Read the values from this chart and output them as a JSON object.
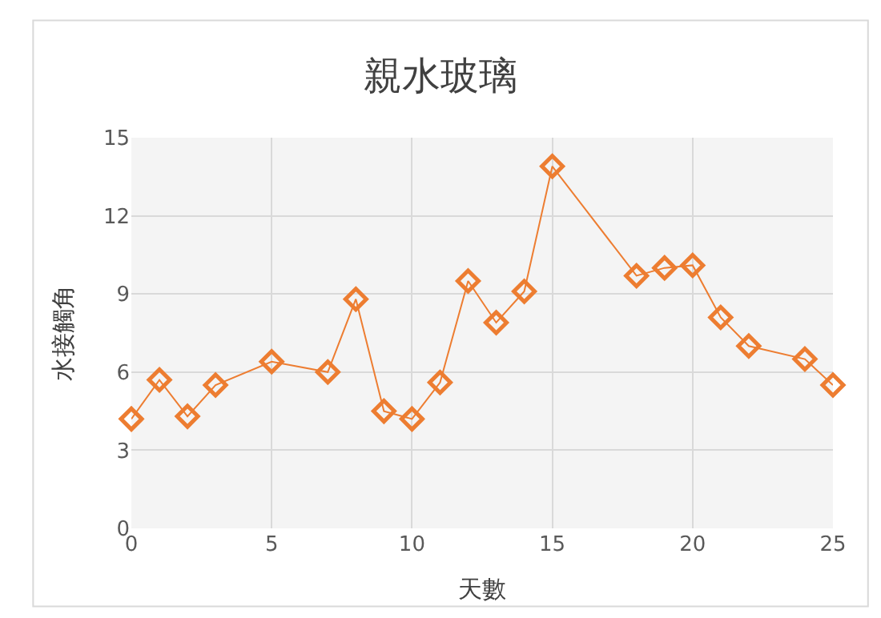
{
  "chart_data": {
    "type": "line",
    "title": "親水玻璃",
    "xlabel": "天數",
    "ylabel": "水接觸角",
    "x": [
      0,
      1,
      2,
      3,
      5,
      7,
      8,
      9,
      10,
      11,
      12,
      13,
      14,
      15,
      18,
      19,
      20,
      21,
      22,
      24,
      25
    ],
    "series": [
      {
        "color": "#ed7d31",
        "values": [
          4.2,
          5.7,
          4.3,
          5.5,
          6.4,
          6.0,
          8.8,
          4.5,
          4.2,
          5.6,
          9.5,
          7.9,
          9.1,
          13.9,
          9.7,
          10.0,
          10.1,
          8.1,
          7.0,
          6.5,
          5.5
        ]
      }
    ],
    "xlim": [
      0,
      25
    ],
    "xticks": [
      0,
      5,
      10,
      15,
      20,
      25
    ],
    "ylim": [
      0,
      15
    ],
    "yticks": [
      0,
      3,
      6,
      9,
      12,
      15
    ],
    "grid": true,
    "marker": "diamond",
    "line_style": "solid"
  }
}
